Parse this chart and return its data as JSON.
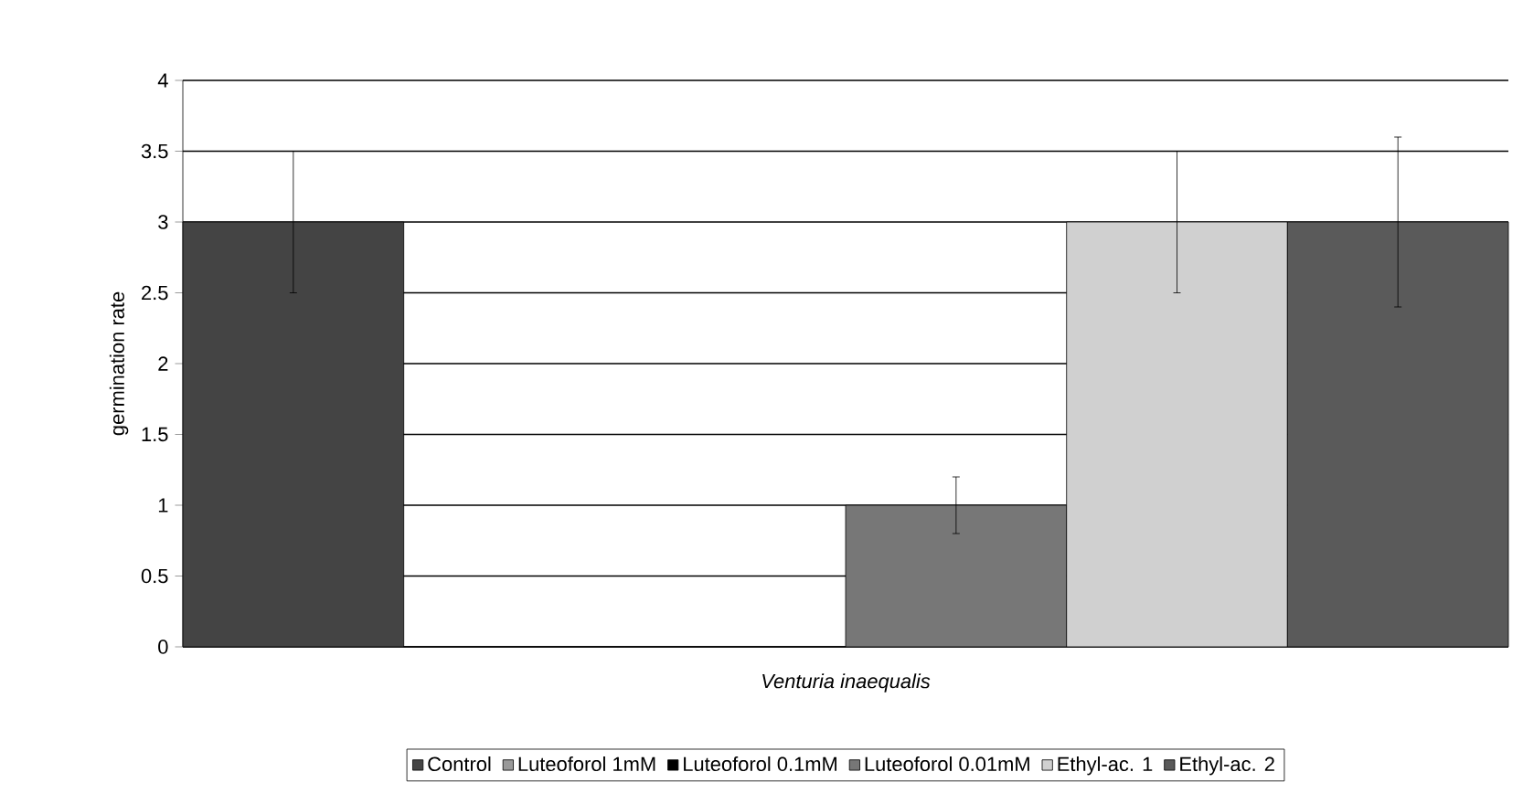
{
  "chart_data": {
    "type": "bar",
    "ylabel": "germination rate",
    "xlabel": "Venturia inaequalis",
    "categories": [
      null
    ],
    "series": [
      {
        "name": "Control",
        "color": "#444444",
        "values": [
          3
        ],
        "errors": [
          0.5
        ]
      },
      {
        "name": "Luteoforol 1mM",
        "color": "#999999",
        "values": [
          0
        ],
        "errors": [
          null
        ]
      },
      {
        "name": "Luteoforol 0.1mM",
        "color": "#000000",
        "values": [
          0
        ],
        "errors": [
          null
        ]
      },
      {
        "name": "Luteoforol 0.01mM",
        "color": "#777777",
        "values": [
          1
        ],
        "errors": [
          0.2
        ]
      },
      {
        "name": "Ethyl-ac. 1",
        "color": "#d0d0d0",
        "values": [
          3
        ],
        "errors": [
          0.5
        ]
      },
      {
        "name": "Ethyl-ac. 2",
        "color": "#5a5a5a",
        "values": [
          3
        ],
        "errors": [
          0.6
        ]
      }
    ],
    "ylim": [
      0,
      4
    ],
    "yticks": [
      0,
      0.5,
      1,
      1.5,
      2,
      2.5,
      3,
      3.5,
      4
    ],
    "grid": "y",
    "legend": "bottom"
  }
}
